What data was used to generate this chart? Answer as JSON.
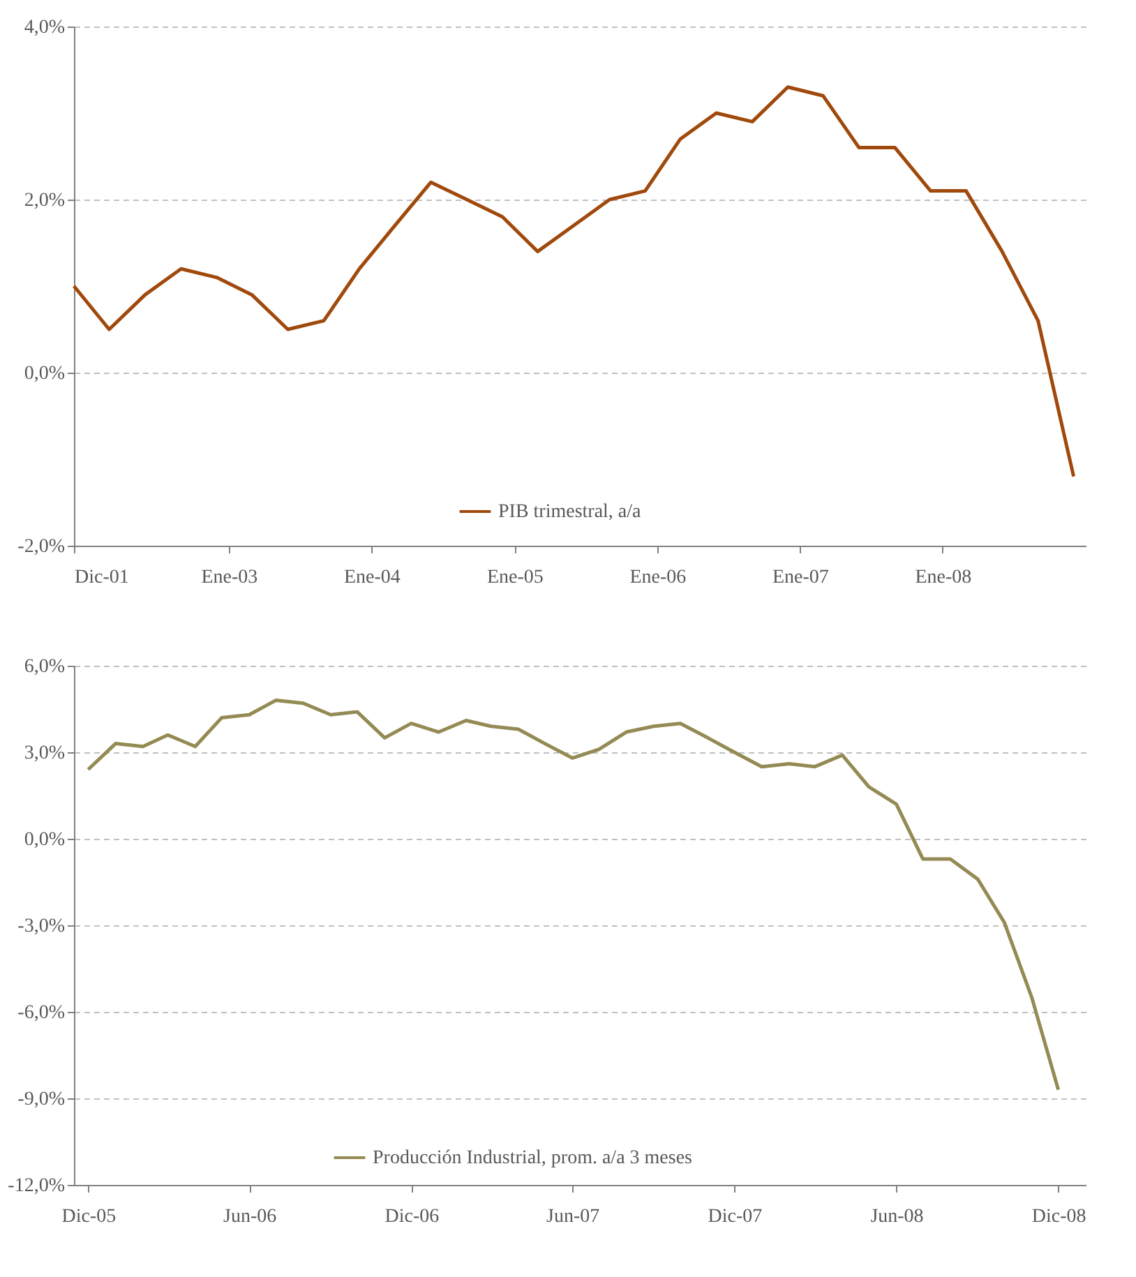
{
  "chart_data": [
    {
      "type": "line",
      "legend": "bottom",
      "grid": "y",
      "x": [
        "2001-12",
        "2002-03",
        "2002-06",
        "2002-09",
        "2002-12",
        "2003-03",
        "2003-06",
        "2003-09",
        "2003-12",
        "2004-03",
        "2004-06",
        "2004-09",
        "2004-12",
        "2005-03",
        "2005-06",
        "2005-09",
        "2005-12",
        "2006-03",
        "2006-06",
        "2006-09",
        "2006-12",
        "2007-03",
        "2007-06",
        "2007-09",
        "2007-12",
        "2008-03",
        "2008-06",
        "2008-09",
        "2008-12"
      ],
      "series": [
        {
          "name": "PIB trimestral, a/a",
          "color": "#a0490c",
          "values": [
            1.0,
            0.5,
            0.9,
            1.2,
            1.1,
            0.9,
            0.5,
            0.6,
            1.2,
            1.7,
            2.2,
            2.0,
            1.8,
            1.4,
            1.7,
            2.0,
            2.1,
            2.7,
            3.0,
            2.9,
            3.3,
            3.2,
            2.6,
            2.6,
            2.1,
            2.1,
            1.4,
            0.6,
            -1.2
          ]
        }
      ],
      "xlim": [
        "2001-12",
        "2009-01"
      ],
      "xticks": [
        {
          "value": "2001-12",
          "label": "Dic-01"
        },
        {
          "value": "2003-01",
          "label": "Ene-03"
        },
        {
          "value": "2004-01",
          "label": "Ene-04"
        },
        {
          "value": "2005-01",
          "label": "Ene-05"
        },
        {
          "value": "2006-01",
          "label": "Ene-06"
        },
        {
          "value": "2007-01",
          "label": "Ene-07"
        },
        {
          "value": "2008-01",
          "label": "Ene-08"
        }
      ],
      "ylim": [
        -2,
        4
      ],
      "yticks": [
        {
          "value": -2,
          "label": "-2,0%"
        },
        {
          "value": 0,
          "label": "0,0%"
        },
        {
          "value": 2,
          "label": "2,0%"
        },
        {
          "value": 4,
          "label": "4,0%"
        }
      ]
    },
    {
      "type": "line",
      "legend": "bottom",
      "grid": "y",
      "x": [
        "2005-12",
        "2006-01",
        "2006-02",
        "2006-03",
        "2006-04",
        "2006-05",
        "2006-06",
        "2006-07",
        "2006-08",
        "2006-09",
        "2006-10",
        "2006-11",
        "2006-12",
        "2007-01",
        "2007-02",
        "2007-03",
        "2007-04",
        "2007-05",
        "2007-06",
        "2007-07",
        "2007-08",
        "2007-09",
        "2007-10",
        "2007-11",
        "2007-12",
        "2008-01",
        "2008-02",
        "2008-03",
        "2008-04",
        "2008-05",
        "2008-06",
        "2008-07",
        "2008-08",
        "2008-09",
        "2008-10",
        "2008-11",
        "2008-12"
      ],
      "series": [
        {
          "name": "Producción  Industrial, prom. a/a 3 meses",
          "color": "#948a54",
          "values": [
            2.4,
            3.3,
            3.2,
            3.6,
            3.2,
            4.2,
            4.3,
            4.8,
            4.7,
            4.3,
            4.4,
            3.5,
            4.0,
            3.7,
            4.1,
            3.9,
            3.8,
            3.3,
            2.8,
            3.1,
            3.7,
            3.9,
            4.0,
            3.5,
            3.0,
            2.5,
            2.6,
            2.5,
            2.9,
            1.8,
            1.2,
            -0.7,
            -0.7,
            -1.4,
            -2.9,
            -5.5,
            -8.7
          ]
        }
      ],
      "xlim": [
        "2005-11-15",
        "2009-01"
      ],
      "xticks": [
        {
          "value": "2005-12",
          "label": "Dic-05"
        },
        {
          "value": "2006-06",
          "label": "Jun-06"
        },
        {
          "value": "2006-12",
          "label": "Dic-06"
        },
        {
          "value": "2007-06",
          "label": "Jun-07"
        },
        {
          "value": "2007-12",
          "label": "Dic-07"
        },
        {
          "value": "2008-06",
          "label": "Jun-08"
        },
        {
          "value": "2008-12",
          "label": "Dic-08"
        }
      ],
      "ylim": [
        -12,
        6
      ],
      "yticks": [
        {
          "value": -12,
          "label": "-12,0%"
        },
        {
          "value": -9,
          "label": "-9,0%"
        },
        {
          "value": -6,
          "label": "-6,0%"
        },
        {
          "value": -3,
          "label": "-3,0%"
        },
        {
          "value": 0,
          "label": "0,0%"
        },
        {
          "value": 3,
          "label": "3,0%"
        },
        {
          "value": 6,
          "label": "6,0%"
        }
      ]
    }
  ]
}
